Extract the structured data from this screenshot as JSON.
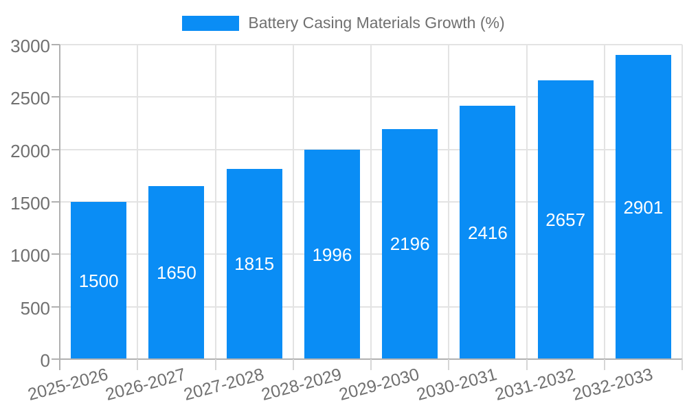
{
  "chart_data": {
    "type": "bar",
    "title": "Battery Casing Materials Growth (%)",
    "categories": [
      "2025-2026",
      "2026-2027",
      "2027-2028",
      "2028-2029",
      "2029-2030",
      "2030-2031",
      "2031-2032",
      "2032-2033"
    ],
    "values": [
      1500,
      1650,
      1815,
      1996,
      2196,
      2416,
      2657,
      2901
    ],
    "bar_value_labels": [
      "1500",
      "1650",
      "1815",
      "1996",
      "2196",
      "2416",
      "2657",
      "2901"
    ],
    "xlabel": "",
    "ylabel": "",
    "ylim": [
      0,
      3000
    ],
    "yticks": [
      0,
      500,
      1000,
      1500,
      2000,
      2500,
      3000
    ],
    "ytick_labels": [
      "0",
      "500",
      "1000",
      "1500",
      "2000",
      "2500",
      "3000"
    ],
    "grid": true,
    "x_tick_rotation_deg": -15,
    "legend": {
      "position": "top-center",
      "entries": [
        "Battery Casing Materials Growth (%)"
      ]
    },
    "colors": {
      "bar": "#0a8df5",
      "bar_label_text": "#ffffff",
      "axis_text": "#707070",
      "gridline": "#e3e3e3",
      "x_tick_mark": "#d6d6d6",
      "axis_line": "#b0b0b0",
      "background": "#ffffff"
    }
  }
}
